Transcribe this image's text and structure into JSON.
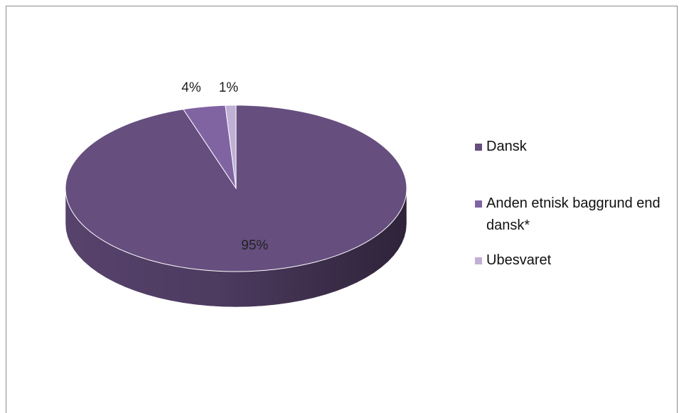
{
  "chart_data": {
    "type": "pie",
    "categories": [
      "Dansk",
      "Anden etnisk baggrund end dansk*",
      "Ubesvaret"
    ],
    "values": [
      95,
      4,
      1
    ],
    "value_labels": [
      "95%",
      "4%",
      "1%"
    ],
    "colors": [
      "#664e7f",
      "#8064a2",
      "#c0b0d5"
    ],
    "three_d": true,
    "legend": "right"
  }
}
